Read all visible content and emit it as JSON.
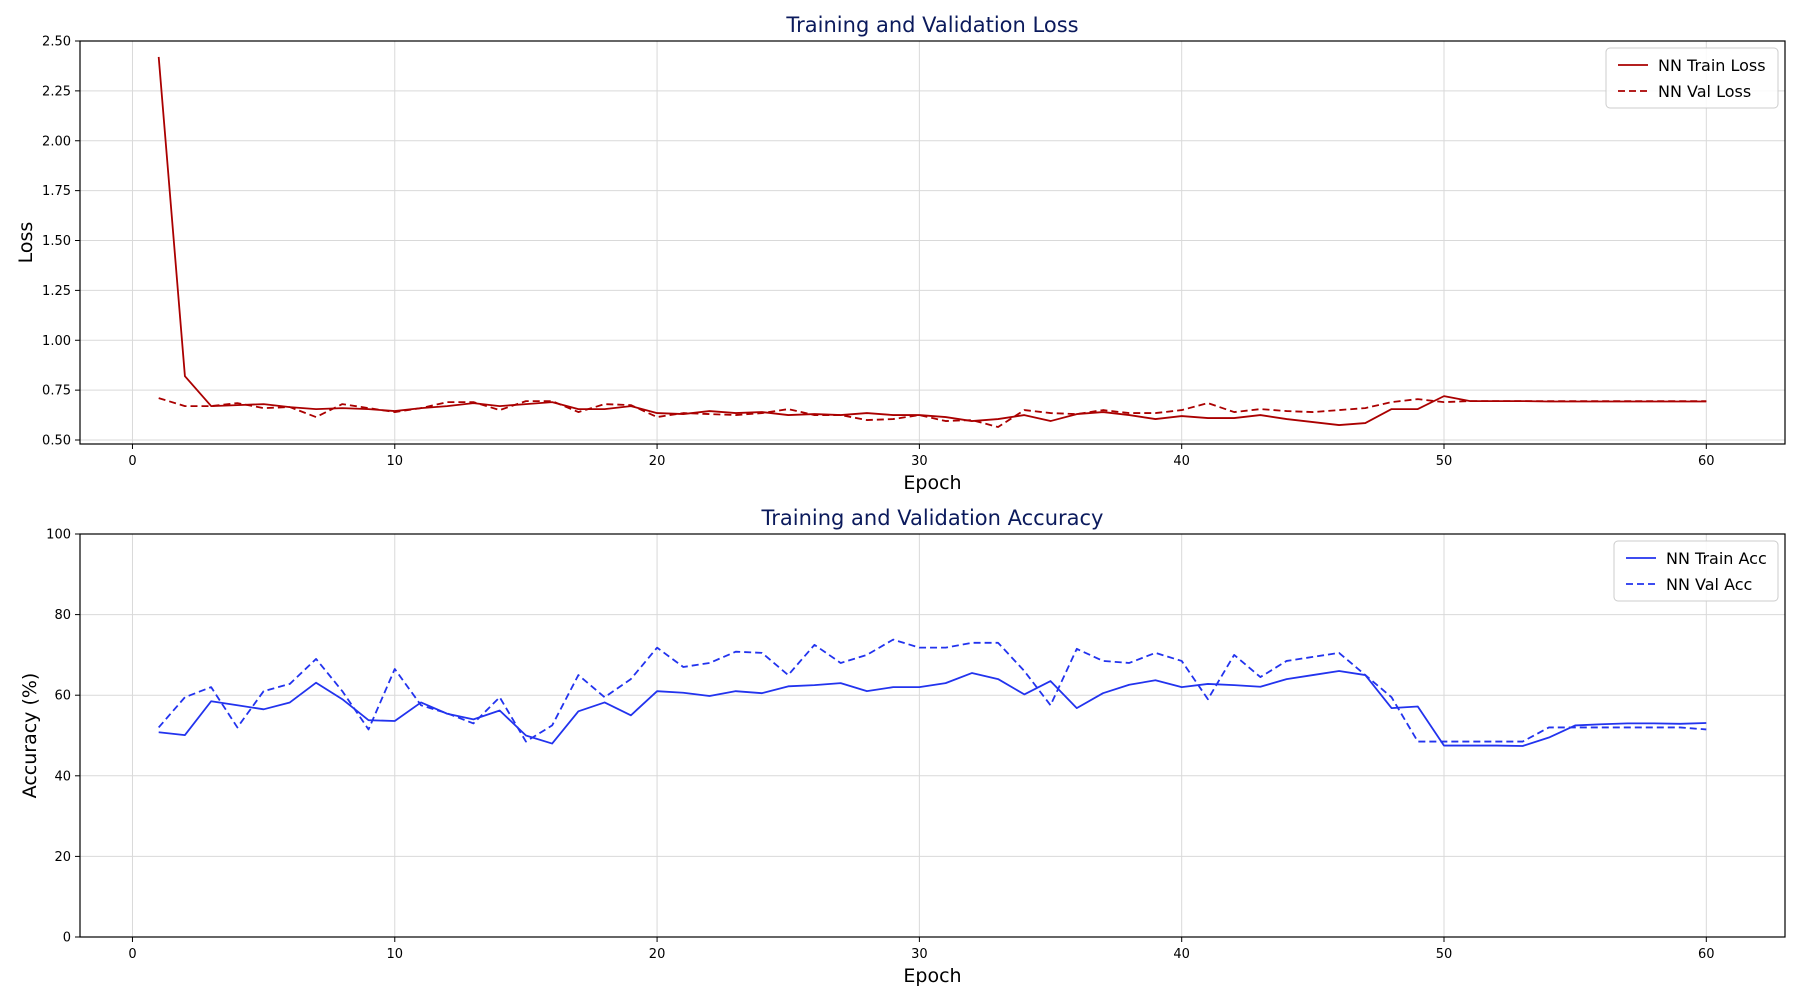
{
  "chart_data": [
    {
      "type": "line",
      "title": "Training and Validation Loss",
      "xlabel": "Epoch",
      "ylabel": "Loss",
      "xlim": [
        -2,
        63
      ],
      "ylim": [
        0.48,
        2.5
      ],
      "xticks": [
        0,
        10,
        20,
        30,
        40,
        50,
        60
      ],
      "xtick_labels": [
        "0",
        "10",
        "20",
        "30",
        "40",
        "50",
        "60"
      ],
      "yticks": [
        0.5,
        0.75,
        1.0,
        1.25,
        1.5,
        1.75,
        2.0,
        2.25,
        2.5
      ],
      "ytick_labels": [
        "0.50",
        "0.75",
        "1.00",
        "1.25",
        "1.50",
        "1.75",
        "2.00",
        "2.25",
        "2.50"
      ],
      "grid": true,
      "legend_position": "top-right",
      "x": [
        1,
        2,
        3,
        4,
        5,
        6,
        7,
        8,
        9,
        10,
        11,
        12,
        13,
        14,
        15,
        16,
        17,
        18,
        19,
        20,
        21,
        22,
        23,
        24,
        25,
        26,
        27,
        28,
        29,
        30,
        31,
        32,
        33,
        34,
        35,
        36,
        37,
        38,
        39,
        40,
        41,
        42,
        43,
        44,
        45,
        46,
        47,
        48,
        49,
        50,
        51,
        52,
        53,
        54,
        55,
        56,
        57,
        58,
        59,
        60
      ],
      "series": [
        {
          "name": "NN Train Loss",
          "color": "#aa0000",
          "style": "solid",
          "values": [
            2.42,
            0.82,
            0.67,
            0.675,
            0.68,
            0.665,
            0.655,
            0.66,
            0.655,
            0.645,
            0.66,
            0.67,
            0.685,
            0.67,
            0.68,
            0.69,
            0.655,
            0.655,
            0.67,
            0.635,
            0.63,
            0.645,
            0.635,
            0.64,
            0.625,
            0.63,
            0.625,
            0.635,
            0.625,
            0.625,
            0.615,
            0.595,
            0.605,
            0.625,
            0.595,
            0.63,
            0.64,
            0.625,
            0.605,
            0.62,
            0.61,
            0.61,
            0.625,
            0.605,
            0.59,
            0.575,
            0.585,
            0.655,
            0.655,
            0.72,
            0.695,
            0.695,
            0.695,
            0.693,
            0.693,
            0.693,
            0.693,
            0.693,
            0.693,
            0.693
          ]
        },
        {
          "name": "NN Val Loss",
          "color": "#aa0000",
          "style": "dashed",
          "values": [
            0.71,
            0.67,
            0.67,
            0.685,
            0.66,
            0.665,
            0.615,
            0.68,
            0.66,
            0.64,
            0.66,
            0.69,
            0.69,
            0.65,
            0.695,
            0.695,
            0.64,
            0.68,
            0.675,
            0.615,
            0.635,
            0.63,
            0.625,
            0.635,
            0.655,
            0.625,
            0.625,
            0.6,
            0.605,
            0.625,
            0.595,
            0.6,
            0.565,
            0.65,
            0.635,
            0.63,
            0.65,
            0.635,
            0.635,
            0.65,
            0.685,
            0.64,
            0.655,
            0.645,
            0.64,
            0.65,
            0.66,
            0.69,
            0.705,
            0.69,
            0.695,
            0.695,
            0.695,
            0.695,
            0.695,
            0.695,
            0.695,
            0.695,
            0.695,
            0.695
          ]
        }
      ]
    },
    {
      "type": "line",
      "title": "Training and Validation Accuracy",
      "xlabel": "Epoch",
      "ylabel": "Accuracy (%)",
      "xlim": [
        -2,
        63
      ],
      "ylim": [
        0,
        100
      ],
      "xticks": [
        0,
        10,
        20,
        30,
        40,
        50,
        60
      ],
      "xtick_labels": [
        "0",
        "10",
        "20",
        "30",
        "40",
        "50",
        "60"
      ],
      "yticks": [
        0,
        20,
        40,
        60,
        80,
        100
      ],
      "ytick_labels": [
        "0",
        "20",
        "40",
        "60",
        "80",
        "100"
      ],
      "grid": true,
      "legend_position": "top-right",
      "x": [
        1,
        2,
        3,
        4,
        5,
        6,
        7,
        8,
        9,
        10,
        11,
        12,
        13,
        14,
        15,
        16,
        17,
        18,
        19,
        20,
        21,
        22,
        23,
        24,
        25,
        26,
        27,
        28,
        29,
        30,
        31,
        32,
        33,
        34,
        35,
        36,
        37,
        38,
        39,
        40,
        41,
        42,
        43,
        44,
        45,
        46,
        47,
        48,
        49,
        50,
        51,
        52,
        53,
        54,
        55,
        56,
        57,
        58,
        59,
        60
      ],
      "series": [
        {
          "name": "NN Train Acc",
          "color": "#2233ee",
          "style": "solid",
          "values": [
            50.8,
            50.1,
            58.5,
            57.5,
            56.5,
            58.2,
            63.1,
            59.0,
            53.8,
            53.6,
            58.2,
            55.4,
            54.0,
            56.2,
            50.0,
            48.0,
            56.0,
            58.2,
            55.0,
            61.0,
            60.6,
            59.8,
            61.0,
            60.5,
            62.2,
            62.5,
            63.0,
            61.0,
            62.0,
            62.0,
            63.0,
            65.5,
            64.0,
            60.2,
            63.5,
            56.8,
            60.5,
            62.6,
            63.7,
            62.0,
            62.8,
            62.5,
            62.1,
            64.0,
            65.0,
            66.0,
            65.0,
            56.8,
            57.2,
            47.5,
            47.5,
            47.5,
            47.4,
            49.5,
            52.5,
            52.8,
            53.0,
            53.0,
            52.9,
            53.1
          ]
        },
        {
          "name": "NN Val Acc",
          "color": "#2233ee",
          "style": "dashed",
          "values": [
            52.0,
            59.5,
            62.0,
            52.0,
            61.0,
            62.8,
            69.0,
            61.0,
            51.5,
            66.5,
            57.5,
            55.5,
            53.0,
            59.5,
            48.5,
            52.5,
            65.0,
            59.5,
            64.0,
            71.8,
            67.0,
            68.0,
            70.8,
            70.5,
            65.0,
            72.5,
            68.0,
            70.0,
            73.8,
            71.8,
            71.8,
            73.0,
            73.0,
            66.0,
            57.5,
            71.5,
            68.5,
            68.0,
            70.5,
            68.5,
            59.0,
            70.0,
            64.5,
            68.5,
            69.5,
            70.5,
            65.0,
            59.5,
            48.5,
            48.5,
            48.5,
            48.5,
            48.5,
            52.0,
            52.0,
            52.0,
            52.0,
            52.0,
            52.0,
            51.5
          ]
        }
      ]
    }
  ]
}
